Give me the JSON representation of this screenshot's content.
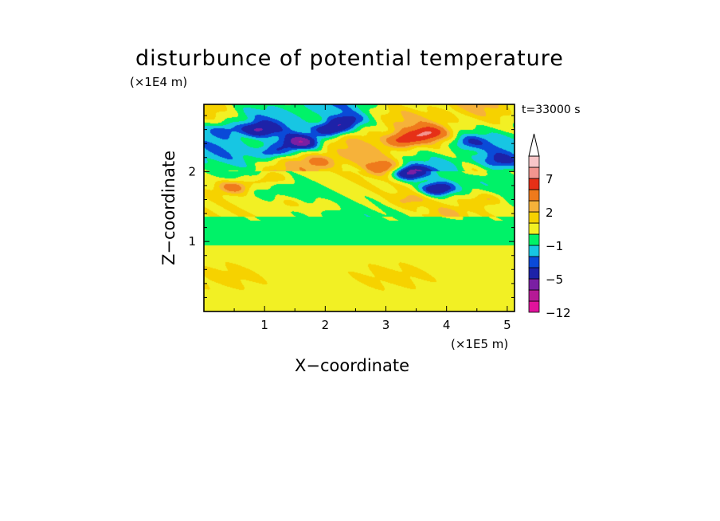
{
  "chart_data": {
    "type": "heatmap",
    "title": "disturbunce of potential temperature",
    "xlabel": "X−coordinate",
    "ylabel": "Z−coordinate",
    "x_unit": "(×1E5 m)",
    "y_unit": "(×1E4 m)",
    "timestamp": "t=33000 s",
    "xlim": [
      0,
      5.12
    ],
    "ylim": [
      0,
      2.96
    ],
    "x_ticks": [
      "1",
      "2",
      "3",
      "4",
      "5"
    ],
    "y_ticks": [
      "1",
      "2"
    ],
    "colorbar": {
      "bounds": [
        -12,
        -9,
        -7,
        -5,
        -3,
        -2,
        -1,
        0,
        1,
        2,
        3,
        5,
        7,
        9,
        12
      ],
      "colors": [
        "#e0139c",
        "#b51a96",
        "#7a1fa3",
        "#1d22a8",
        "#0a4ad8",
        "#17c6e3",
        "#00f268",
        "#f2f024",
        "#f6d200",
        "#f6b23a",
        "#ef7a1c",
        "#e63017",
        "#f3958f",
        "#f8c6c8"
      ],
      "labels": [
        "−12",
        "−5",
        "−1",
        "2",
        "7"
      ],
      "extend": "max"
    },
    "anomalies": [
      {
        "x": 0.9,
        "z": 2.6,
        "value": -4.0
      },
      {
        "x": 1.15,
        "z": 2.28,
        "value": -3.5
      },
      {
        "x": 1.6,
        "z": 2.42,
        "value": -6.0
      },
      {
        "x": 2.1,
        "z": 2.6,
        "value": -5.5
      },
      {
        "x": 2.35,
        "z": 2.72,
        "value": -3.5
      },
      {
        "x": 3.4,
        "z": 1.98,
        "value": -6.0
      },
      {
        "x": 3.85,
        "z": 1.75,
        "value": -5.5
      },
      {
        "x": 4.35,
        "z": 2.42,
        "value": -2.5
      },
      {
        "x": 4.85,
        "z": 2.15,
        "value": -2.0
      },
      {
        "x": 0.35,
        "z": 2.6,
        "value": -2.0
      },
      {
        "x": 3.3,
        "z": 2.45,
        "value": 5.0
      },
      {
        "x": 3.7,
        "z": 2.55,
        "value": 5.0
      },
      {
        "x": 0.5,
        "z": 1.78,
        "value": 4.0
      },
      {
        "x": 1.1,
        "z": 1.9,
        "value": 2.5
      },
      {
        "x": 1.9,
        "z": 2.15,
        "value": 2.5
      },
      {
        "x": 2.95,
        "z": 2.05,
        "value": 3.5
      },
      {
        "x": 1.4,
        "z": 1.55,
        "value": 1.5
      },
      {
        "x": 1.95,
        "z": 1.5,
        "value": 1.5
      },
      {
        "x": 3.4,
        "z": 1.6,
        "value": 1.6
      },
      {
        "x": 4.0,
        "z": 1.4,
        "value": 1.4
      },
      {
        "x": 4.65,
        "z": 1.6,
        "value": 2.0
      },
      {
        "x": 4.4,
        "z": 2.02,
        "value": 1.5
      }
    ]
  }
}
